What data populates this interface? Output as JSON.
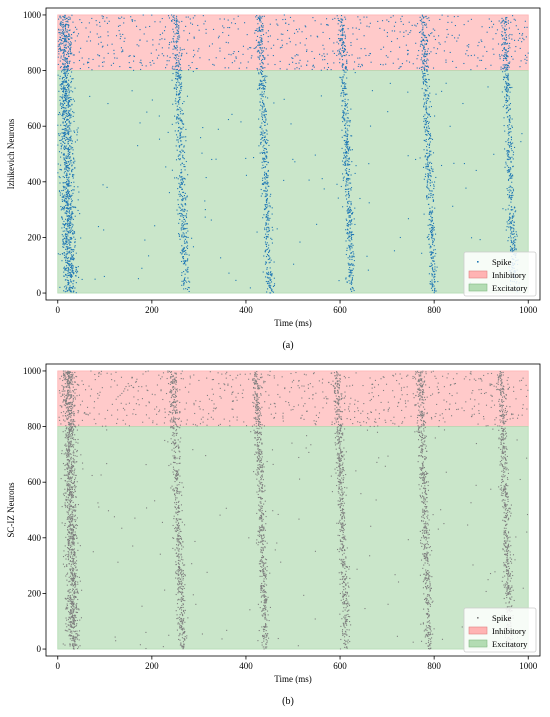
{
  "chart_data": [
    {
      "type": "scatter",
      "caption": "(a)",
      "xlabel": "Time (ms)",
      "ylabel": "Izhikevich Neurons",
      "xlim": [
        -25,
        1025
      ],
      "ylim": [
        -25,
        1025
      ],
      "xticks": [
        0,
        200,
        400,
        600,
        800,
        1000
      ],
      "yticks": [
        0,
        200,
        400,
        600,
        800,
        1000
      ],
      "spike_color": "#1f77b4",
      "regions": [
        {
          "name": "Inhibitory",
          "x": [
            0,
            1000
          ],
          "y": [
            800,
            1000
          ],
          "color": "#ffb3b3"
        },
        {
          "name": "Excitatory",
          "x": [
            0,
            1000
          ],
          "y": [
            0,
            800
          ],
          "color": "#b3dcb3"
        }
      ],
      "series": [
        {
          "name": "Spike",
          "bursts": [
            {
              "t": 20,
              "width": 14,
              "slope": -0.012,
              "density": 1200
            },
            {
              "t": 262,
              "width": 9,
              "slope": -0.022,
              "density": 480
            },
            {
              "t": 440,
              "width": 8,
              "slope": -0.022,
              "density": 480
            },
            {
              "t": 614,
              "width": 8,
              "slope": -0.022,
              "density": 480
            },
            {
              "t": 788,
              "width": 8,
              "slope": -0.022,
              "density": 480
            },
            {
              "t": 960,
              "width": 8,
              "slope": -0.022,
              "density": 480
            }
          ],
          "background_excitatory_count": 140,
          "background_inhibitory_count": 650
        }
      ],
      "legend": [
        "Spike",
        "Inhibitory",
        "Excitatory"
      ],
      "legend_location": "lower-right"
    },
    {
      "type": "scatter",
      "caption": "(b)",
      "xlabel": "Time (ms)",
      "ylabel": "SC-IZ Neurons",
      "xlim": [
        -25,
        1025
      ],
      "ylim": [
        -25,
        1025
      ],
      "xticks": [
        0,
        200,
        400,
        600,
        800,
        1000
      ],
      "yticks": [
        0,
        200,
        400,
        600,
        800,
        1000
      ],
      "spike_color": "#7f7f7f",
      "regions": [
        {
          "name": "Inhibitory",
          "x": [
            0,
            1000
          ],
          "y": [
            800,
            1000
          ],
          "color": "#ffb3b3"
        },
        {
          "name": "Excitatory",
          "x": [
            0,
            1000
          ],
          "y": [
            0,
            800
          ],
          "color": "#b3dcb3"
        }
      ],
      "series": [
        {
          "name": "Spike",
          "bursts": [
            {
              "t": 28,
              "width": 12,
              "slope": -0.01,
              "density": 1200
            },
            {
              "t": 255,
              "width": 9,
              "slope": -0.02,
              "density": 560
            },
            {
              "t": 432,
              "width": 8,
              "slope": -0.02,
              "density": 560
            },
            {
              "t": 604,
              "width": 8,
              "slope": -0.02,
              "density": 560
            },
            {
              "t": 780,
              "width": 8,
              "slope": -0.02,
              "density": 560
            },
            {
              "t": 952,
              "width": 8,
              "slope": -0.02,
              "density": 560
            }
          ],
          "background_excitatory_count": 160,
          "background_inhibitory_count": 700
        }
      ],
      "legend": [
        "Spike",
        "Inhibitory",
        "Excitatory"
      ],
      "legend_location": "lower-right"
    }
  ]
}
